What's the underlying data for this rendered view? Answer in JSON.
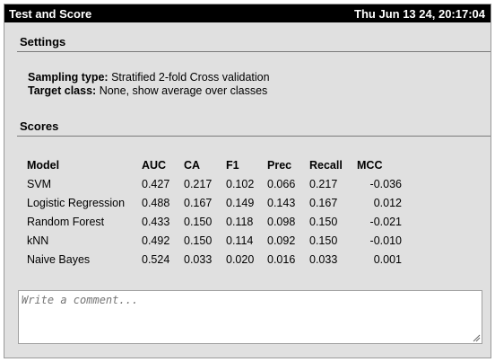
{
  "window": {
    "title": "Test and Score",
    "datetime": "Thu Jun 13 24, 20:17:04"
  },
  "settings": {
    "heading": "Settings",
    "sampling_label": "Sampling type:",
    "sampling_value": "Stratified 2-fold Cross validation",
    "target_label": "Target class:",
    "target_value": "None, show average over classes"
  },
  "scores": {
    "heading": "Scores",
    "columns": [
      "Model",
      "AUC",
      "CA",
      "F1",
      "Prec",
      "Recall",
      "MCC"
    ],
    "rows": [
      [
        "SVM",
        "0.427",
        "0.217",
        "0.102",
        "0.066",
        "0.217",
        "-0.036"
      ],
      [
        "Logistic Regression",
        "0.488",
        "0.167",
        "0.149",
        "0.143",
        "0.167",
        "0.012"
      ],
      [
        "Random Forest",
        "0.433",
        "0.150",
        "0.118",
        "0.098",
        "0.150",
        "-0.021"
      ],
      [
        "kNN",
        "0.492",
        "0.150",
        "0.114",
        "0.092",
        "0.150",
        "-0.010"
      ],
      [
        "Naive Bayes",
        "0.524",
        "0.033",
        "0.020",
        "0.016",
        "0.033",
        "0.001"
      ]
    ]
  },
  "comment": {
    "placeholder": "Write a comment...",
    "value": ""
  }
}
